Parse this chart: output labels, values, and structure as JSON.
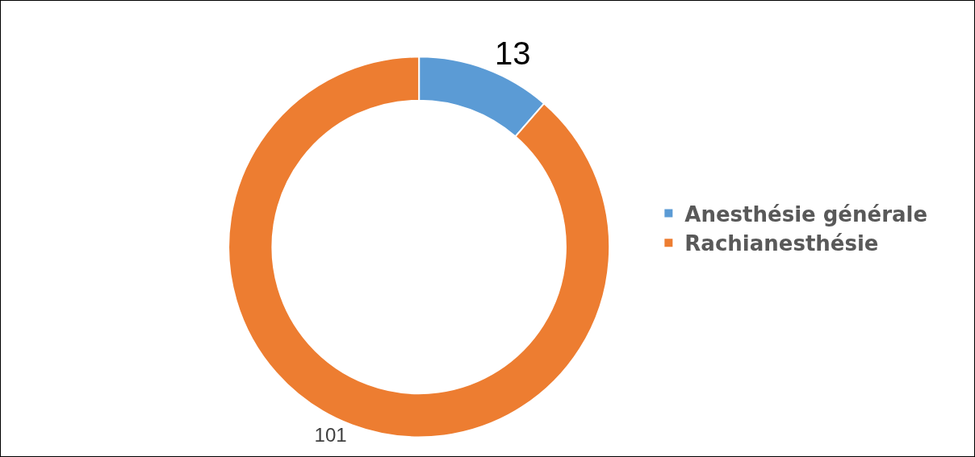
{
  "chart_data": {
    "type": "donut",
    "categories": [
      "Anesthésie générale",
      "Rachianesthésie"
    ],
    "values": [
      13,
      101
    ],
    "colors": [
      "#5b9bd5",
      "#ed7d31"
    ],
    "data_labels": true,
    "legend": "right"
  }
}
